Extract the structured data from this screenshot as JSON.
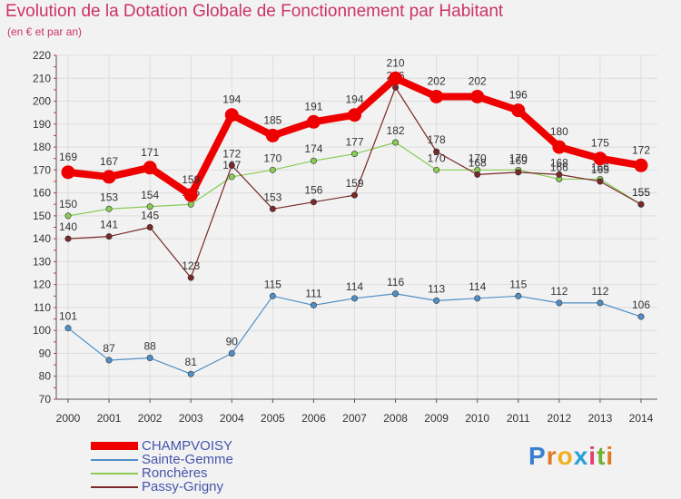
{
  "colors": {
    "background": "#f2f2f2",
    "title": "#cc3366",
    "grid": "#dddddd",
    "axis": "#555555",
    "legend_text": "#4455aa"
  },
  "title": "Evolution de la Dotation Globale de Fonctionnement par Habitant",
  "subtitle": "(en € et par an)",
  "logo": {
    "letters": [
      "P",
      "r",
      "o",
      "x",
      "i",
      "t",
      "i"
    ],
    "colors": [
      "#3a7fd0",
      "#e07a20",
      "#f0b020",
      "#2a9fd8",
      "#e04070",
      "#70b030",
      "#e07a20"
    ]
  },
  "chart_data": {
    "type": "line",
    "x": [
      2000,
      2001,
      2002,
      2003,
      2004,
      2005,
      2006,
      2007,
      2008,
      2009,
      2010,
      2011,
      2012,
      2013,
      2014
    ],
    "ylim": [
      70,
      220
    ],
    "yticks": [
      70,
      80,
      90,
      100,
      110,
      120,
      130,
      140,
      150,
      160,
      170,
      180,
      190,
      200,
      210,
      220
    ],
    "grid": true,
    "series": [
      {
        "name": "CHAMPVOISY",
        "color": "#ee0000",
        "bold": true,
        "values": [
          169,
          167,
          171,
          159,
          194,
          185,
          191,
          194,
          210,
          202,
          202,
          196,
          180,
          175,
          172
        ],
        "labels": [
          "169",
          "167",
          "171",
          "159",
          "194",
          "185",
          "191",
          "194",
          "210",
          "202",
          "202",
          "196",
          "180",
          "175",
          "172"
        ]
      },
      {
        "name": "Sainte-Gemme",
        "color": "#4f8fc8",
        "bold": false,
        "values": [
          101,
          87,
          88,
          81,
          90,
          115,
          111,
          114,
          116,
          113,
          114,
          115,
          112,
          112,
          106
        ],
        "labels": [
          "101",
          "87",
          "88",
          "81",
          "90",
          "115",
          "111",
          "114",
          "116",
          "113",
          "114",
          "115",
          "112",
          "112",
          "106"
        ]
      },
      {
        "name": "Ronchères",
        "color": "#88cc55",
        "bold": false,
        "values": [
          150,
          153,
          154,
          155,
          167,
          170,
          174,
          177,
          182,
          170,
          170,
          170,
          166,
          166,
          155
        ],
        "labels": [
          "150",
          "153",
          "154",
          "155",
          "167",
          "170",
          "174",
          "177",
          "182",
          "170",
          "170",
          "170",
          "166",
          "166",
          "155"
        ]
      },
      {
        "name": "Passy-Grigny",
        "color": "#7a2828",
        "bold": false,
        "values": [
          140,
          141,
          145,
          123,
          172,
          153,
          156,
          159,
          206,
          178,
          168,
          169,
          168,
          165,
          155
        ],
        "labels": [
          "140",
          "141",
          "145",
          "123",
          "172",
          "153",
          "156",
          "159",
          "206",
          "178",
          "168",
          "169",
          "168",
          "165",
          "155"
        ]
      }
    ]
  },
  "legend": {
    "items": [
      "CHAMPVOISY",
      "Sainte-Gemme",
      "Ronchères",
      "Passy-Grigny"
    ]
  }
}
